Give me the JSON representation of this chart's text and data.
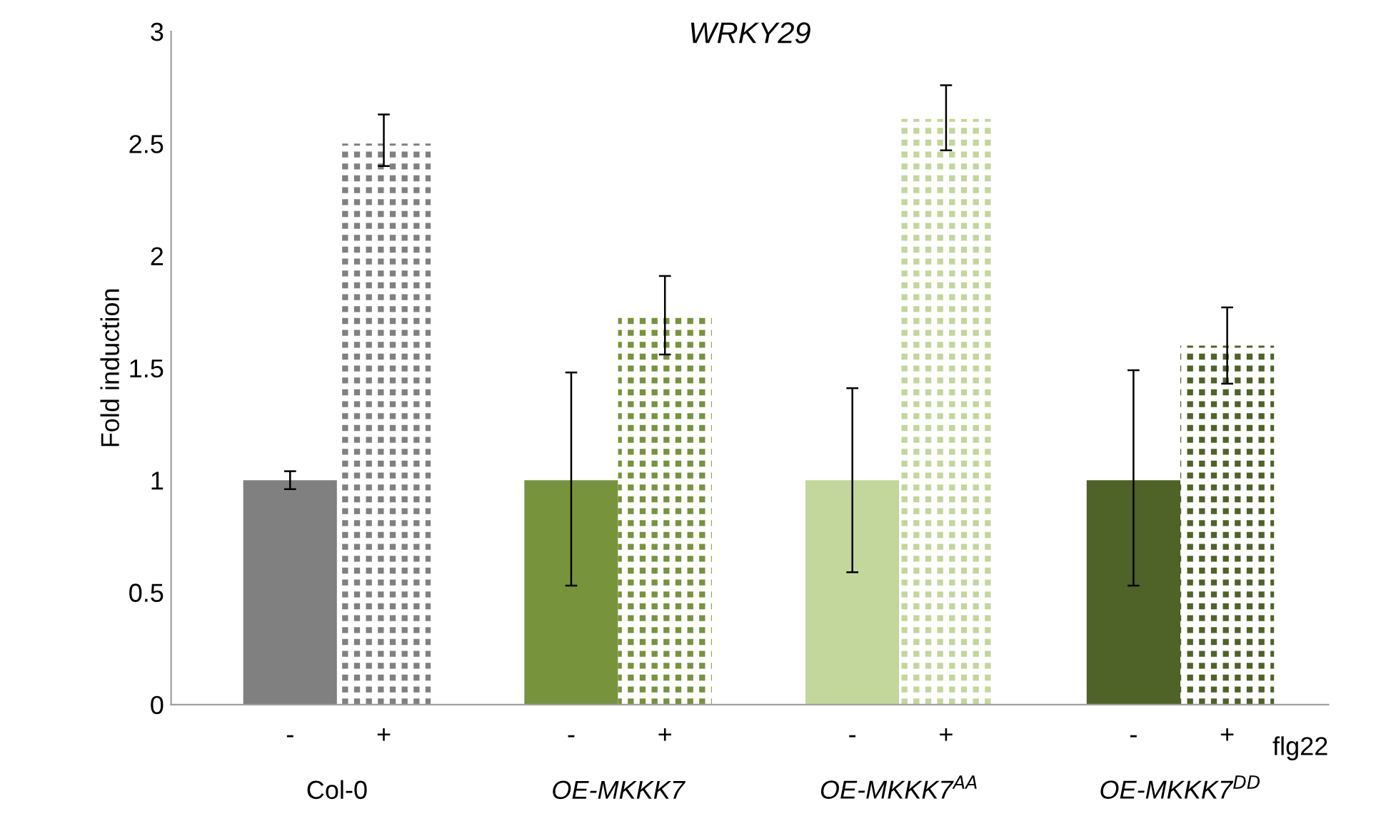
{
  "chart_data": {
    "type": "bar",
    "title": "WRKY29",
    "ylabel": "Fold induction",
    "categories": [
      "-",
      "+",
      "-",
      "+",
      "-",
      "+",
      "-",
      "+"
    ],
    "values": [
      1.0,
      2.5,
      1.0,
      1.74,
      1.0,
      2.61,
      1.0,
      1.6
    ],
    "errors": [
      [
        0.96,
        1.04
      ],
      [
        2.4,
        2.63
      ],
      [
        0.53,
        1.48
      ],
      [
        1.56,
        1.91
      ],
      [
        0.59,
        1.41
      ],
      [
        2.47,
        2.76
      ],
      [
        0.53,
        1.49
      ],
      [
        1.43,
        1.77
      ]
    ],
    "colors": [
      "#808080",
      "#808080",
      "#77933c",
      "#77933c",
      "#c3d69b",
      "#c3d69b",
      "#4f6228",
      "#4f6228"
    ],
    "ylim": [
      0,
      3
    ],
    "yticks": [
      0,
      0.5,
      1,
      1.5,
      2,
      2.5,
      3
    ],
    "grid": false,
    "legend": false,
    "annotations": [
      "Col-0",
      "OE-MKKK7",
      "OE-MKKK7$^{AA}$",
      "OE-MKKK7$^{DD}$",
      "flg22"
    ]
  }
}
